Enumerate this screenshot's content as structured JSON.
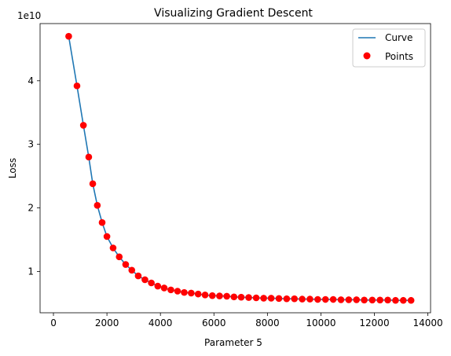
{
  "chart_data": {
    "type": "line+scatter",
    "title": "Visualizing Gradient Descent",
    "xlabel": "Parameter 5",
    "ylabel": "Loss",
    "y_offset_label": "1e10",
    "xlim": [
      -500,
      14100
    ],
    "ylim": [
      0.35,
      4.9
    ],
    "y_unit_multiplier": 10000000000,
    "xticks": [
      0,
      2000,
      4000,
      6000,
      8000,
      10000,
      12000,
      14000
    ],
    "xtick_labels": [
      "0",
      "2000",
      "4000",
      "6000",
      "8000",
      "10000",
      "12000",
      "14000"
    ],
    "yticks": [
      1,
      2,
      3,
      4
    ],
    "ytick_labels": [
      "1",
      "2",
      "3",
      "4"
    ],
    "grid": false,
    "legend_position": "top-right",
    "series": [
      {
        "name": "Curve",
        "kind": "line",
        "color": "#1f77b4"
      },
      {
        "name": "Points",
        "kind": "scatter",
        "color": "#ff0000"
      }
    ],
    "x": [
      570,
      880,
      1120,
      1320,
      1470,
      1640,
      1820,
      2000,
      2230,
      2460,
      2700,
      2930,
      3170,
      3420,
      3660,
      3900,
      4140,
      4390,
      4640,
      4890,
      5150,
      5410,
      5670,
      5940,
      6210,
      6480,
      6750,
      7020,
      7300,
      7580,
      7860,
      8140,
      8430,
      8720,
      9010,
      9300,
      9590,
      9880,
      10170,
      10460,
      10750,
      11040,
      11330,
      11620,
      11920,
      12210,
      12500,
      12790,
      13080,
      13370
    ],
    "y": [
      4.7,
      3.92,
      3.3,
      2.8,
      2.38,
      2.04,
      1.77,
      1.55,
      1.37,
      1.23,
      1.11,
      1.02,
      0.93,
      0.87,
      0.82,
      0.77,
      0.74,
      0.71,
      0.69,
      0.67,
      0.66,
      0.645,
      0.63,
      0.62,
      0.615,
      0.61,
      0.6,
      0.595,
      0.59,
      0.585,
      0.58,
      0.58,
      0.575,
      0.57,
      0.57,
      0.565,
      0.565,
      0.56,
      0.56,
      0.56,
      0.555,
      0.555,
      0.555,
      0.55,
      0.55,
      0.55,
      0.55,
      0.545,
      0.545,
      0.545
    ]
  }
}
